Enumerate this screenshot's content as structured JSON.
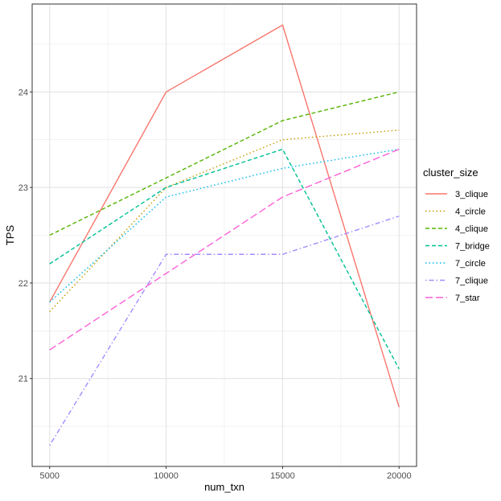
{
  "chart_data": {
    "type": "line",
    "xlabel": "num_txn",
    "ylabel": "TPS",
    "x": [
      5000,
      10000,
      15000,
      20000
    ],
    "xticks": [
      5000,
      10000,
      15000,
      20000
    ],
    "xtick_labels": [
      "5000",
      "10000",
      "15000",
      "20000"
    ],
    "yticks": [
      21,
      22,
      23,
      24
    ],
    "ytick_labels": [
      "21",
      "22",
      "23",
      "24"
    ],
    "xlim": [
      4250,
      20750
    ],
    "ylim": [
      20.08,
      24.92
    ],
    "grid": true,
    "legend": {
      "title": "cluster_size",
      "position": "right"
    },
    "series": [
      {
        "name": "3_clique",
        "values": [
          21.8,
          24.0,
          24.7,
          20.7
        ],
        "color": "#F8766D",
        "dash": "solid"
      },
      {
        "name": "4_circle",
        "values": [
          21.7,
          23.0,
          23.5,
          23.6
        ],
        "color": "#C49A00",
        "dash": "dotted"
      },
      {
        "name": "4_clique",
        "values": [
          22.5,
          23.1,
          23.7,
          24.0
        ],
        "color": "#53B400",
        "dash": "dashed"
      },
      {
        "name": "7_bridge",
        "values": [
          22.2,
          23.0,
          23.4,
          21.1
        ],
        "color": "#00C094",
        "dash": "dashed"
      },
      {
        "name": "7_circle",
        "values": [
          21.8,
          22.9,
          23.2,
          23.4
        ],
        "color": "#00B6EB",
        "dash": "dotted"
      },
      {
        "name": "7_clique",
        "values": [
          20.3,
          22.3,
          22.3,
          22.7
        ],
        "color": "#A58AFF",
        "dash": "dotdash"
      },
      {
        "name": "7_star",
        "values": [
          21.3,
          22.1,
          22.9,
          23.4
        ],
        "color": "#FB61D7",
        "dash": "longdash"
      }
    ]
  }
}
